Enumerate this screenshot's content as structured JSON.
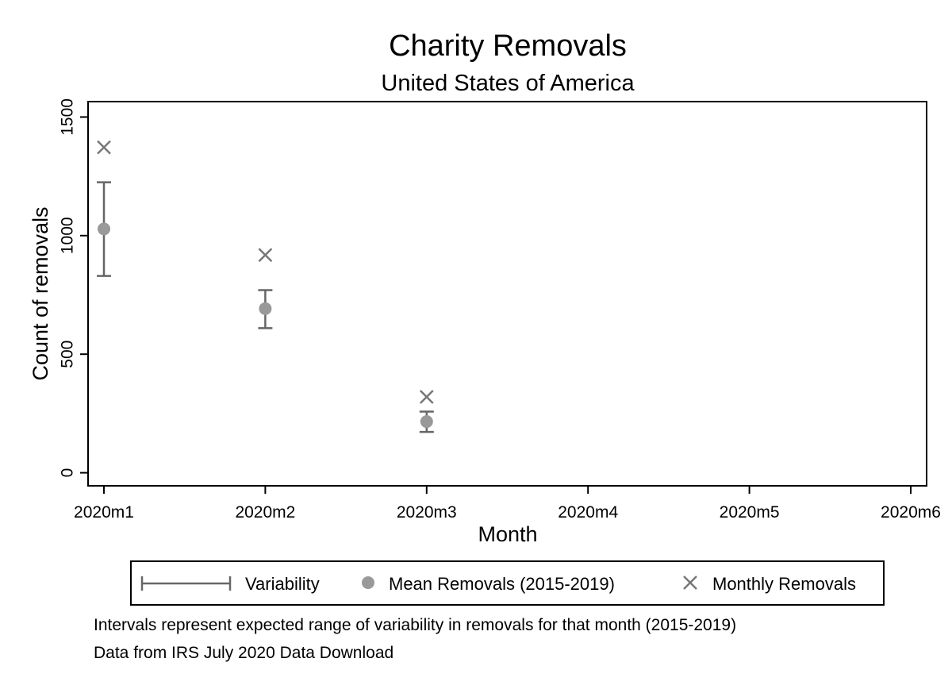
{
  "chart_data": {
    "type": "scatter",
    "title": "Charity Removals",
    "subtitle": "United States of America",
    "xlabel": "Month",
    "ylabel": "Count of removals",
    "categories": [
      "2020m1",
      "2020m2",
      "2020m3",
      "2020m4",
      "2020m5",
      "2020m6"
    ],
    "ylim": [
      -55,
      1565
    ],
    "yticks": [
      0,
      500,
      1000,
      1500
    ],
    "grid": false,
    "legend_position": "bottom",
    "series": [
      {
        "name": "Variability",
        "kind": "errorbar",
        "color": "#666666",
        "values": [
          {
            "x": "2020m1",
            "low": 830,
            "high": 1225
          },
          {
            "x": "2020m2",
            "low": 610,
            "high": 770
          },
          {
            "x": "2020m3",
            "low": 172,
            "high": 258
          }
        ]
      },
      {
        "name": "Mean Removals (2015-2019)",
        "kind": "circle",
        "color": "#999999",
        "values": [
          {
            "x": "2020m1",
            "y": 1028
          },
          {
            "x": "2020m2",
            "y": 692
          },
          {
            "x": "2020m3",
            "y": 216
          }
        ]
      },
      {
        "name": "Monthly Removals",
        "kind": "cross",
        "color": "#777777",
        "values": [
          {
            "x": "2020m1",
            "y": 1372
          },
          {
            "x": "2020m2",
            "y": 918
          },
          {
            "x": "2020m3",
            "y": 320
          }
        ]
      }
    ],
    "notes": [
      "Intervals represent expected range of variability in removals for that month (2015-2019)",
      "Data from IRS July 2020 Data Download"
    ]
  }
}
